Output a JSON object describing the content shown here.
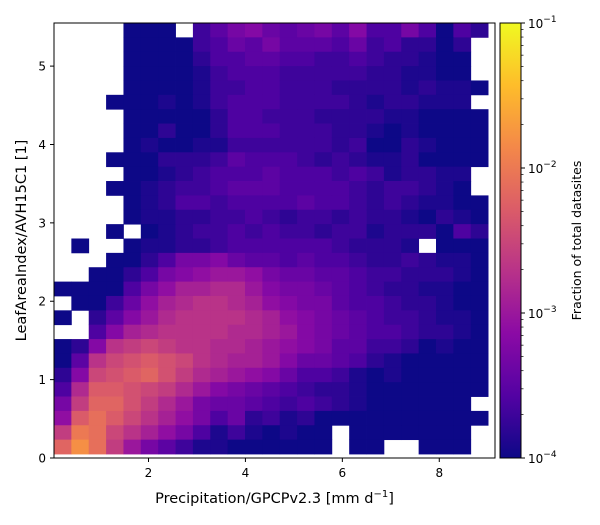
{
  "chart_data": {
    "type": "heatmap",
    "xlabel": "Precipitation/GPCPv2.3 [mm d",
    "xlabel_sup": "−1",
    "xlabel_end": "]",
    "ylabel": "LeafAreaIndex/AVH15C1 [1]",
    "xlim": [
      0.05,
      9.15
    ],
    "ylim": [
      0,
      5.55
    ],
    "x_bin_width": 0.3583,
    "y_bin_width": 0.1833,
    "x_ticks": [
      {
        "value": 2,
        "label": "2"
      },
      {
        "value": 4,
        "label": "4"
      },
      {
        "value": 6,
        "label": "6"
      },
      {
        "value": 8,
        "label": "8"
      }
    ],
    "y_ticks": [
      {
        "value": 0,
        "label": "0"
      },
      {
        "value": 1,
        "label": "1"
      },
      {
        "value": 2,
        "label": "2"
      },
      {
        "value": 3,
        "label": "3"
      },
      {
        "value": 4,
        "label": "4"
      },
      {
        "value": 5,
        "label": "5"
      }
    ],
    "colorbar": {
      "label": "Fraction of total datasites",
      "scale": "log",
      "colormap": "plasma",
      "range": [
        0.0001,
        0.1
      ],
      "ticks": [
        {
          "value": 0.1,
          "base": "10",
          "exp": "−1"
        },
        {
          "value": 0.01,
          "base": "10",
          "exp": "−2"
        },
        {
          "value": 0.001,
          "base": "10",
          "exp": "−3"
        },
        {
          "value": 0.0001,
          "base": "10",
          "exp": "−4"
        }
      ]
    },
    "grid": false,
    "legend": "none",
    "colors": {
      "cmap_stops": [
        "#0d0887",
        "#5302a3",
        "#8b0aa5",
        "#b83289",
        "#db5c68",
        "#f48849",
        "#febd2a",
        "#f0f921"
      ],
      "empty_bin": "#ffffff"
    },
    "grid_values_note": "rows listed from top (LAI ≈ 5.5) to bottom (LAI ≈ 0); each value is log10 of fraction; null = empty bin",
    "grid_values": [
      [
        null,
        null,
        null,
        null,
        -4.0,
        -4.0,
        -4.0,
        null,
        -3.7,
        -3.5,
        -3.3,
        -3.2,
        -3.4,
        -3.5,
        -3.4,
        -3.3,
        -3.5,
        -3.2,
        -3.6,
        -3.6,
        -3.3,
        -3.6,
        -4.0,
        -3.6,
        -3.8
      ],
      [
        null,
        null,
        null,
        null,
        -4.0,
        -4.0,
        -4.0,
        -4.0,
        -3.7,
        -3.6,
        -3.4,
        -3.5,
        -3.3,
        -3.5,
        -3.5,
        -3.5,
        -3.6,
        -3.4,
        -3.7,
        -3.6,
        -3.8,
        -3.8,
        -4.0,
        -3.8,
        null
      ],
      [
        null,
        null,
        null,
        null,
        -4.0,
        -4.0,
        -4.0,
        -4.0,
        -3.8,
        -3.6,
        -3.6,
        -3.5,
        -3.5,
        -3.6,
        -3.6,
        -3.7,
        -3.7,
        -3.6,
        -3.7,
        -3.8,
        -3.8,
        -3.9,
        -4.0,
        -4.0,
        null
      ],
      [
        null,
        null,
        null,
        null,
        -4.0,
        -4.0,
        -4.0,
        -4.0,
        -3.9,
        -3.7,
        -3.6,
        -3.6,
        -3.6,
        -3.7,
        -3.7,
        -3.7,
        -3.7,
        -3.7,
        -3.8,
        -3.8,
        -3.9,
        -3.9,
        -4.0,
        -4.0,
        null
      ],
      [
        null,
        null,
        null,
        null,
        -4.0,
        -4.0,
        -4.0,
        -4.0,
        -3.9,
        -3.7,
        -3.7,
        -3.6,
        -3.6,
        -3.7,
        -3.7,
        -3.7,
        -3.8,
        -3.8,
        -3.8,
        -3.8,
        -3.9,
        -3.8,
        -3.9,
        -3.9,
        -4.0
      ],
      [
        null,
        null,
        null,
        -4.0,
        -4.0,
        -4.0,
        -3.9,
        -4.0,
        -3.9,
        -3.7,
        -3.6,
        -3.6,
        -3.6,
        -3.7,
        -3.7,
        -3.7,
        -3.7,
        -3.8,
        -3.9,
        -3.8,
        -3.8,
        -3.9,
        -3.9,
        -3.9,
        null
      ],
      [
        null,
        null,
        null,
        null,
        -4.0,
        -4.0,
        -4.0,
        -4.0,
        -4.0,
        -3.8,
        -3.6,
        -3.6,
        -3.7,
        -3.7,
        -3.7,
        -3.8,
        -3.8,
        -3.8,
        -3.8,
        -3.9,
        -3.9,
        -4.0,
        -4.0,
        -4.0,
        -4.0
      ],
      [
        null,
        null,
        null,
        null,
        -4.0,
        -4.0,
        -3.8,
        -4.0,
        -4.0,
        -3.8,
        -3.6,
        -3.6,
        -3.6,
        -3.7,
        -3.7,
        -3.7,
        -3.8,
        -3.8,
        -3.9,
        -4.0,
        -3.9,
        -4.0,
        -4.0,
        -4.0,
        -4.0
      ],
      [
        null,
        null,
        null,
        null,
        -4.0,
        -3.9,
        -4.0,
        -4.0,
        -3.9,
        -3.9,
        -3.7,
        -3.7,
        -3.7,
        -3.7,
        -3.7,
        -3.7,
        -3.8,
        -3.7,
        -4.0,
        -4.0,
        -3.8,
        -3.9,
        -4.0,
        -4.0,
        -4.0
      ],
      [
        null,
        null,
        null,
        -4.0,
        -4.0,
        -4.0,
        -3.8,
        -3.8,
        -3.8,
        -3.7,
        -3.5,
        -3.6,
        -3.6,
        -3.6,
        -3.7,
        -3.8,
        -3.7,
        -3.8,
        -3.9,
        -3.9,
        -3.8,
        -4.0,
        -4.0,
        -4.0,
        -4.0
      ],
      [
        null,
        null,
        null,
        null,
        -4.0,
        -4.0,
        -3.9,
        -3.8,
        -3.7,
        -3.6,
        -3.6,
        -3.6,
        -3.5,
        -3.6,
        -3.6,
        -3.6,
        -3.7,
        -3.6,
        -3.7,
        -3.9,
        -3.8,
        -3.8,
        -3.9,
        -3.9,
        null
      ],
      [
        null,
        null,
        null,
        -4.0,
        -4.0,
        -3.9,
        -3.8,
        -3.7,
        -3.7,
        -3.6,
        -3.5,
        -3.5,
        -3.5,
        -3.6,
        -3.6,
        -3.6,
        -3.6,
        -3.7,
        -3.8,
        -3.7,
        -3.7,
        -3.8,
        -3.9,
        -4.0,
        null
      ],
      [
        null,
        null,
        null,
        null,
        -4.0,
        -3.9,
        -3.8,
        -3.6,
        -3.6,
        -3.7,
        -3.6,
        -3.6,
        -3.6,
        -3.6,
        -3.5,
        -3.6,
        -3.6,
        -3.7,
        -3.8,
        -3.7,
        -3.8,
        -3.9,
        -3.9,
        -4.0,
        -4.0
      ],
      [
        null,
        null,
        null,
        null,
        -4.0,
        -3.9,
        -3.9,
        -3.8,
        -3.8,
        -3.7,
        -3.7,
        -3.6,
        -3.7,
        -3.8,
        -3.7,
        -3.7,
        -3.8,
        -3.7,
        -3.8,
        -3.8,
        -3.9,
        -4.0,
        -3.8,
        -3.9,
        -4.0
      ],
      [
        null,
        null,
        null,
        -4.0,
        null,
        -4.0,
        -3.9,
        -3.8,
        -3.7,
        -3.7,
        -3.6,
        -3.7,
        -3.6,
        -3.7,
        -3.7,
        -3.8,
        -3.7,
        -3.7,
        -3.9,
        -3.8,
        -3.8,
        -3.8,
        -4.0,
        -3.6,
        -3.8
      ],
      [
        null,
        -4.0,
        null,
        null,
        -4.0,
        -3.9,
        -3.9,
        -3.8,
        -3.8,
        -3.7,
        -3.6,
        -3.6,
        -3.6,
        -3.6,
        -3.6,
        -3.6,
        -3.7,
        -3.8,
        -3.8,
        -3.8,
        -3.9,
        null,
        -4.0,
        -4.0,
        -4.0
      ],
      [
        null,
        null,
        null,
        -4.0,
        -4.0,
        -3.8,
        -3.6,
        -3.3,
        -3.3,
        -3.2,
        -3.4,
        -3.5,
        -3.5,
        -3.6,
        -3.5,
        -3.6,
        -3.6,
        -3.7,
        -3.8,
        -3.8,
        -3.7,
        -3.8,
        -3.9,
        -3.9,
        -4.0
      ],
      [
        null,
        null,
        -4.0,
        -4.0,
        -3.8,
        -3.6,
        -3.3,
        -3.2,
        -3.1,
        -3.0,
        -3.0,
        -3.1,
        -3.3,
        -3.4,
        -3.4,
        -3.5,
        -3.5,
        -3.6,
        -3.7,
        -3.7,
        -3.8,
        -3.8,
        -3.8,
        -3.9,
        -4.0
      ],
      [
        -4.0,
        -4.0,
        -4.0,
        -4.0,
        -3.6,
        -3.3,
        -3.1,
        -2.9,
        -2.9,
        -2.8,
        -2.8,
        -3.0,
        -3.2,
        -3.3,
        -3.3,
        -3.4,
        -3.5,
        -3.6,
        -3.7,
        -3.8,
        -3.8,
        -3.9,
        -3.9,
        -4.0,
        -4.0
      ],
      [
        null,
        -4.0,
        -4.0,
        -3.7,
        -3.4,
        -3.1,
        -2.9,
        -2.8,
        -2.7,
        -2.7,
        -2.8,
        -2.9,
        -3.1,
        -3.2,
        -3.3,
        -3.3,
        -3.5,
        -3.6,
        -3.6,
        -3.7,
        -3.8,
        -3.8,
        -3.9,
        -4.0,
        -4.0
      ],
      [
        -4.0,
        null,
        -3.8,
        -3.5,
        -3.2,
        -3.0,
        -2.8,
        -2.7,
        -2.7,
        -2.7,
        -2.7,
        -2.8,
        -2.9,
        -3.1,
        -3.2,
        -3.3,
        -3.4,
        -3.5,
        -3.6,
        -3.7,
        -3.7,
        -3.8,
        -3.9,
        -3.9,
        -4.0
      ],
      [
        null,
        null,
        -3.6,
        -3.2,
        -2.9,
        -2.8,
        -2.7,
        -2.7,
        -2.7,
        -2.7,
        -2.8,
        -2.8,
        -2.9,
        -3.0,
        -3.2,
        -3.3,
        -3.4,
        -3.5,
        -3.6,
        -3.6,
        -3.7,
        -3.8,
        -3.8,
        -3.9,
        -4.0
      ],
      [
        -4.0,
        -3.8,
        -3.2,
        -2.7,
        -2.6,
        -2.5,
        -2.6,
        -2.7,
        -2.7,
        -2.8,
        -2.8,
        -2.9,
        -3.0,
        -3.1,
        -3.2,
        -3.3,
        -3.5,
        -3.5,
        -3.7,
        -3.7,
        -3.8,
        -4.0,
        -3.9,
        -4.0,
        -4.0
      ],
      [
        -4.0,
        -3.5,
        -2.7,
        -2.5,
        -2.4,
        -2.3,
        -2.4,
        -2.5,
        -2.7,
        -2.8,
        -2.9,
        -2.9,
        -3.0,
        -3.2,
        -3.4,
        -3.4,
        -3.5,
        -3.6,
        -3.8,
        -3.9,
        -4.0,
        -4.0,
        -4.0,
        -4.0,
        -4.0
      ],
      [
        -3.8,
        -3.2,
        -2.5,
        -2.4,
        -2.3,
        -2.2,
        -2.4,
        -2.6,
        -2.8,
        -2.9,
        -3.0,
        -3.1,
        -3.2,
        -3.4,
        -3.6,
        -3.6,
        -3.7,
        -3.9,
        -4.0,
        -3.9,
        -4.0,
        -4.0,
        -4.0,
        -4.0,
        -4.0
      ],
      [
        -3.6,
        -2.8,
        -2.3,
        -2.3,
        -2.4,
        -2.5,
        -2.6,
        -2.8,
        -3.0,
        -3.2,
        -3.3,
        -3.4,
        -3.5,
        -3.6,
        -3.7,
        -3.8,
        -3.8,
        -3.9,
        -4.0,
        -4.0,
        -4.0,
        -4.0,
        -4.0,
        -4.0,
        -4.0
      ],
      [
        -3.3,
        -2.6,
        -2.2,
        -2.2,
        -2.4,
        -2.6,
        -2.8,
        -3.0,
        -3.3,
        -3.4,
        -3.4,
        -3.5,
        -3.6,
        -3.7,
        -3.6,
        -3.7,
        -3.8,
        -3.9,
        -4.0,
        -4.0,
        -4.0,
        -4.0,
        -4.0,
        -4.0,
        null
      ],
      [
        -3.1,
        -2.3,
        -2.1,
        -2.3,
        -2.5,
        -2.7,
        -2.9,
        -3.1,
        -3.3,
        -3.6,
        -3.4,
        -3.8,
        -3.7,
        -3.9,
        -3.8,
        -4.0,
        -4.0,
        -4.0,
        -4.0,
        -4.0,
        -4.0,
        -4.0,
        -4.0,
        -4.0,
        -4.0
      ],
      [
        -2.6,
        -2.0,
        -2.1,
        -2.5,
        -2.7,
        -2.9,
        -3.1,
        -3.3,
        -3.6,
        -3.9,
        -3.7,
        -3.9,
        -4.0,
        -3.9,
        -4.0,
        -4.0,
        null,
        -4.0,
        -4.0,
        -4.0,
        -4.0,
        -4.0,
        -4.0,
        -4.0,
        null
      ],
      [
        -2.2,
        -1.8,
        -2.1,
        -2.6,
        -3.0,
        -3.3,
        -3.5,
        -3.7,
        -3.9,
        -3.9,
        -4.0,
        -4.0,
        -4.0,
        -4.0,
        -4.0,
        -4.0,
        null,
        -4.0,
        -4.0,
        null,
        null,
        -4.0,
        -4.0,
        -4.0,
        null
      ]
    ]
  }
}
